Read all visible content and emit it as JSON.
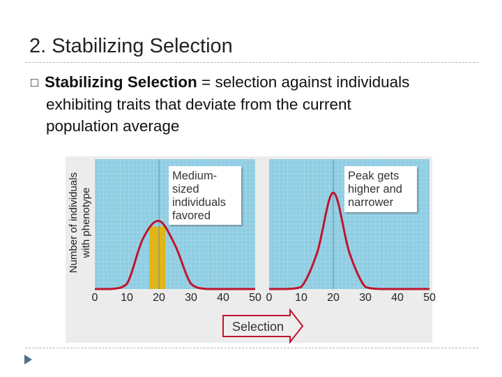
{
  "slide": {
    "title": "2. Stabilizing Selection",
    "bullet_glyph": "□",
    "bullet_term": "Stabilizing Selection",
    "bullet_line1_rest": " = selection against individuals",
    "bullet_line2": "exhibiting traits that deviate from the current",
    "bullet_line3": "population average"
  },
  "figure": {
    "ylabel_line1": "Number of individuals",
    "ylabel_line2": "with phenotype",
    "left_panel": {
      "callout_lines": [
        "Medium-",
        "sized",
        "individuals",
        "favored"
      ],
      "tick_labels": [
        "0",
        "10",
        "20",
        "30",
        "40",
        "50"
      ]
    },
    "right_panel": {
      "callout_lines": [
        "Peak gets",
        "higher and",
        "narrower"
      ],
      "tick_labels": [
        "0",
        "10",
        "20",
        "30",
        "40",
        "50"
      ]
    },
    "arrow_label": "Selection",
    "colors": {
      "panel_bg": "#8fcde3",
      "curve": "#c0142b",
      "highlight": "#e8b400",
      "callout_bg": "#ffffff",
      "arrow_fill": "#eeeeee"
    }
  },
  "chart_data": [
    {
      "type": "line",
      "x": [
        0,
        5,
        10,
        15,
        20,
        25,
        30,
        35,
        40,
        45,
        50
      ],
      "xlim": [
        0,
        50
      ],
      "x_ticks": [
        0,
        10,
        20,
        30,
        40,
        50
      ],
      "highlight_range": [
        17,
        22
      ],
      "series": [
        {
          "values": [
            0,
            0,
            0.05,
            0.48,
            0.65,
            0.42,
            0.05,
            0,
            0,
            0,
            0
          ]
        }
      ],
      "grid": true
    },
    {
      "type": "line",
      "x": [
        0,
        5,
        10,
        15,
        20,
        25,
        30,
        35,
        40,
        45,
        50
      ],
      "xlim": [
        0,
        50
      ],
      "x_ticks": [
        0,
        10,
        20,
        30,
        40,
        50
      ],
      "series": [
        {
          "values": [
            0,
            0,
            0.02,
            0.35,
            0.92,
            0.35,
            0.02,
            0,
            0,
            0,
            0
          ]
        }
      ],
      "grid": true
    }
  ]
}
